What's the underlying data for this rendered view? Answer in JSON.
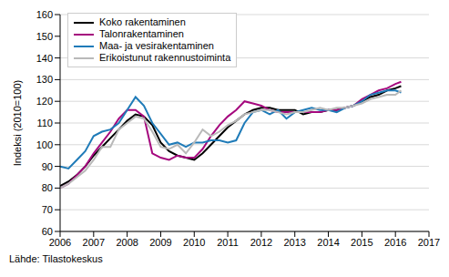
{
  "chart_data": {
    "type": "line",
    "y_label": "Indeksi (2010=100)",
    "source": "Lähde: Tilastokeskus",
    "x": [
      2006.0,
      2006.25,
      2006.5,
      2006.75,
      2007.0,
      2007.25,
      2007.5,
      2007.75,
      2008.0,
      2008.25,
      2008.5,
      2008.75,
      2009.0,
      2009.25,
      2009.5,
      2009.75,
      2010.0,
      2010.25,
      2010.5,
      2010.75,
      2011.0,
      2011.25,
      2011.5,
      2011.75,
      2012.0,
      2012.25,
      2012.5,
      2012.75,
      2013.0,
      2013.25,
      2013.5,
      2013.75,
      2014.0,
      2014.25,
      2014.5,
      2014.75,
      2015.0,
      2015.25,
      2015.5,
      2015.75,
      2016.0,
      2016.17
    ],
    "series": [
      {
        "name": "Koko rakentaminen",
        "color": "#000000",
        "values": [
          81,
          83,
          86,
          90,
          95,
          99,
          103,
          107,
          111,
          114,
          113,
          109,
          101,
          97,
          95,
          94,
          93,
          96,
          100,
          104,
          108,
          111,
          114,
          116,
          117,
          117,
          116,
          116,
          116,
          114,
          115,
          115,
          116,
          116,
          117,
          118,
          120,
          122,
          123,
          125,
          126,
          127
        ]
      },
      {
        "name": "Talonrakentaminen",
        "color": "#a5087e",
        "values": [
          80,
          82,
          86,
          90,
          96,
          101,
          106,
          112,
          116,
          116,
          113,
          96,
          94,
          93,
          95,
          94,
          94,
          98,
          104,
          109,
          113,
          116,
          120,
          119,
          118,
          116,
          115,
          115,
          115,
          115,
          115,
          115,
          116,
          116,
          117,
          118,
          121,
          123,
          125,
          126,
          128,
          129
        ]
      },
      {
        "name": "Maa- ja vesirakentaminen",
        "color": "#1f7bb8",
        "values": [
          90,
          89,
          93,
          97,
          104,
          106,
          107,
          110,
          116,
          122,
          118,
          110,
          105,
          100,
          101,
          99,
          101,
          101,
          102,
          102,
          101,
          102,
          110,
          115,
          116,
          114,
          116,
          112,
          115,
          116,
          117,
          116,
          116,
          115,
          117,
          118,
          120,
          123,
          124,
          125,
          125,
          124
        ]
      },
      {
        "name": "Erikoistunut rakennustoiminta",
        "color": "#b9b9b9",
        "values": [
          80,
          82,
          85,
          88,
          93,
          99,
          99,
          107,
          110,
          113,
          112,
          106,
          99,
          98,
          100,
          96,
          101,
          107,
          104,
          106,
          109,
          111,
          114,
          115,
          116,
          116,
          115,
          114,
          115,
          115,
          116,
          117,
          116,
          117,
          117,
          118,
          119,
          121,
          122,
          123,
          123,
          125
        ]
      }
    ],
    "xlim": [
      2006,
      2017
    ],
    "xticks": [
      2006,
      2007,
      2008,
      2009,
      2010,
      2011,
      2012,
      2013,
      2014,
      2015,
      2016,
      2017
    ],
    "ylim": [
      60,
      160
    ],
    "yticks": [
      60,
      70,
      80,
      90,
      100,
      110,
      120,
      130,
      140,
      150,
      160
    ],
    "grid": true,
    "legend": "upper left"
  }
}
